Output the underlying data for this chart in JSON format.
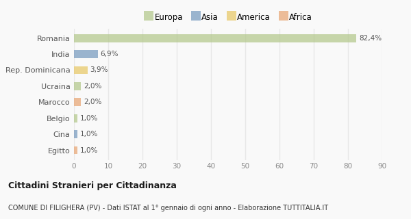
{
  "categories": [
    "Romania",
    "India",
    "Rep. Dominicana",
    "Ucraina",
    "Marocco",
    "Belgio",
    "Cina",
    "Egitto"
  ],
  "values": [
    82.4,
    6.9,
    3.9,
    2.0,
    2.0,
    1.0,
    1.0,
    1.0
  ],
  "labels": [
    "82,4%",
    "6,9%",
    "3,9%",
    "2,0%",
    "2,0%",
    "1,0%",
    "1,0%",
    "1,0%"
  ],
  "colors": [
    "#b5c98e",
    "#7b9dc0",
    "#e8c96a",
    "#b5c98e",
    "#e8a878",
    "#b5c98e",
    "#7b9dc0",
    "#e8a878"
  ],
  "legend": [
    {
      "label": "Europa",
      "color": "#b5c98e"
    },
    {
      "label": "Asia",
      "color": "#7b9dc0"
    },
    {
      "label": "America",
      "color": "#e8c96a"
    },
    {
      "label": "Africa",
      "color": "#e8a878"
    }
  ],
  "xlim": [
    0,
    90
  ],
  "xticks": [
    0,
    10,
    20,
    30,
    40,
    50,
    60,
    70,
    80,
    90
  ],
  "title": "Cittadini Stranieri per Cittadinanza",
  "subtitle": "COMUNE DI FILIGHERA (PV) - Dati ISTAT al 1° gennaio di ogni anno - Elaborazione TUTTITALIA.IT",
  "background_color": "#f9f9f9",
  "grid_color": "#e8e8e8",
  "bar_alpha": 0.75,
  "bar_height": 0.5
}
